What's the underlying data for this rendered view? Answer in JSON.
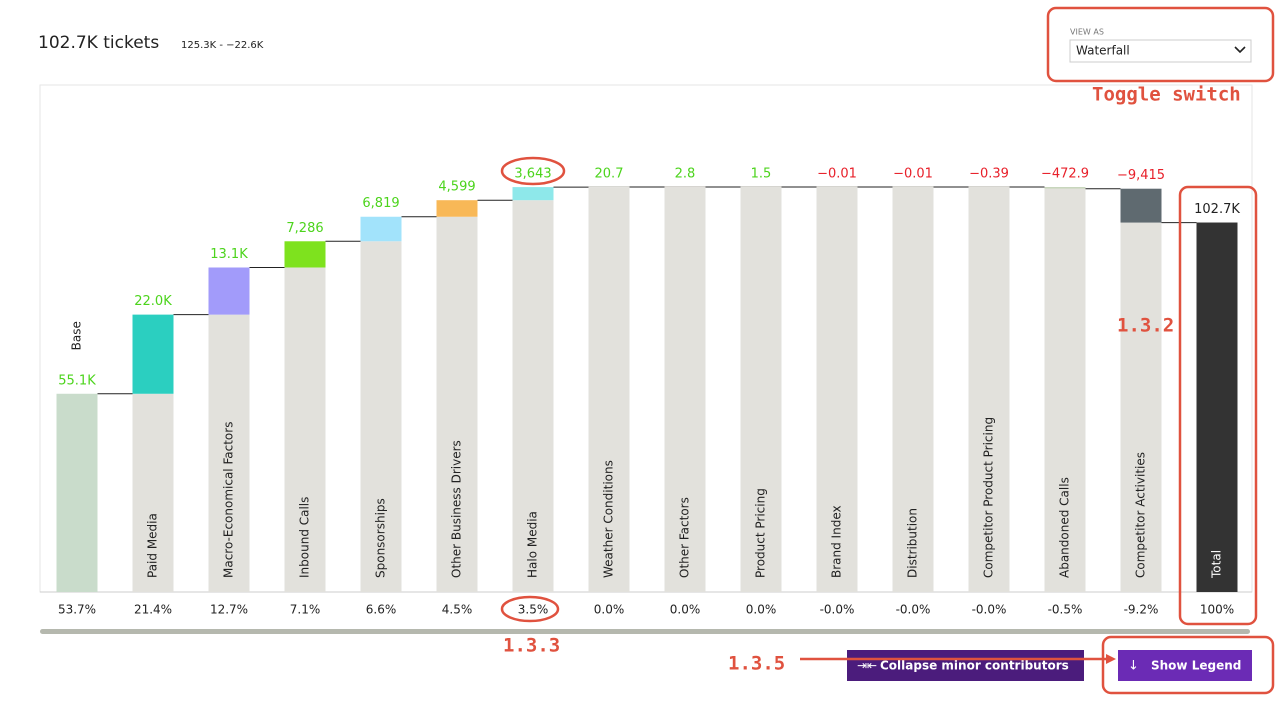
{
  "header": {
    "title": "102.7K tickets",
    "range": "125.3K - −22.6K"
  },
  "view_as": {
    "label": "VIEW AS",
    "value": "Waterfall"
  },
  "buttons": {
    "collapse": "Collapse minor contributors",
    "legend": "Show Legend"
  },
  "annotations": {
    "toggle": "Toggle switch",
    "total": "1.3.2",
    "share": "1.3.3",
    "buttons": "1.3.5"
  },
  "chart_data": {
    "type": "waterfall",
    "categories": [
      "Base",
      "Paid Media",
      "Macro-Economical Factors",
      "Inbound Calls",
      "Sponsorships",
      "Other Business Drivers",
      "Halo Media",
      "Weather Conditions",
      "Other Factors",
      "Product Pricing",
      "Brand Index",
      "Distribution",
      "Competitor Product Pricing",
      "Abandoned Calls",
      "Competitor Activities",
      "Total"
    ],
    "values": [
      55100,
      22000,
      13100,
      7286,
      6819,
      4599,
      3643,
      20.7,
      2.8,
      1.5,
      -0.01,
      -0.01,
      -0.39,
      -472.9,
      -9415,
      102700
    ],
    "value_labels": [
      "55.1K",
      "22.0K",
      "13.1K",
      "7,286",
      "6,819",
      "4,599",
      "3,643",
      "20.7",
      "2.8",
      "1.5",
      "−0.01",
      "−0.01",
      "−0.39",
      "−472.9",
      "−9,415",
      "102.7K"
    ],
    "share_labels": [
      "53.7%",
      "21.4%",
      "12.7%",
      "7.1%",
      "6.6%",
      "4.5%",
      "3.5%",
      "0.0%",
      "0.0%",
      "0.0%",
      "-0.0%",
      "-0.0%",
      "-0.0%",
      "-0.5%",
      "-9.2%",
      "100%"
    ],
    "colors": [
      "#c9dccb",
      "#2bcfc0",
      "#a29bfa",
      "#7ee21e",
      "#a2e3fb",
      "#f8b857",
      "#8ee8ea",
      "#d5d4cf",
      "#d5d4cf",
      "#d5d4cf",
      "#d5d4cf",
      "#d5d4cf",
      "#d5d4cf",
      "#c8d6bd",
      "#5f6a70",
      "#333333"
    ]
  }
}
